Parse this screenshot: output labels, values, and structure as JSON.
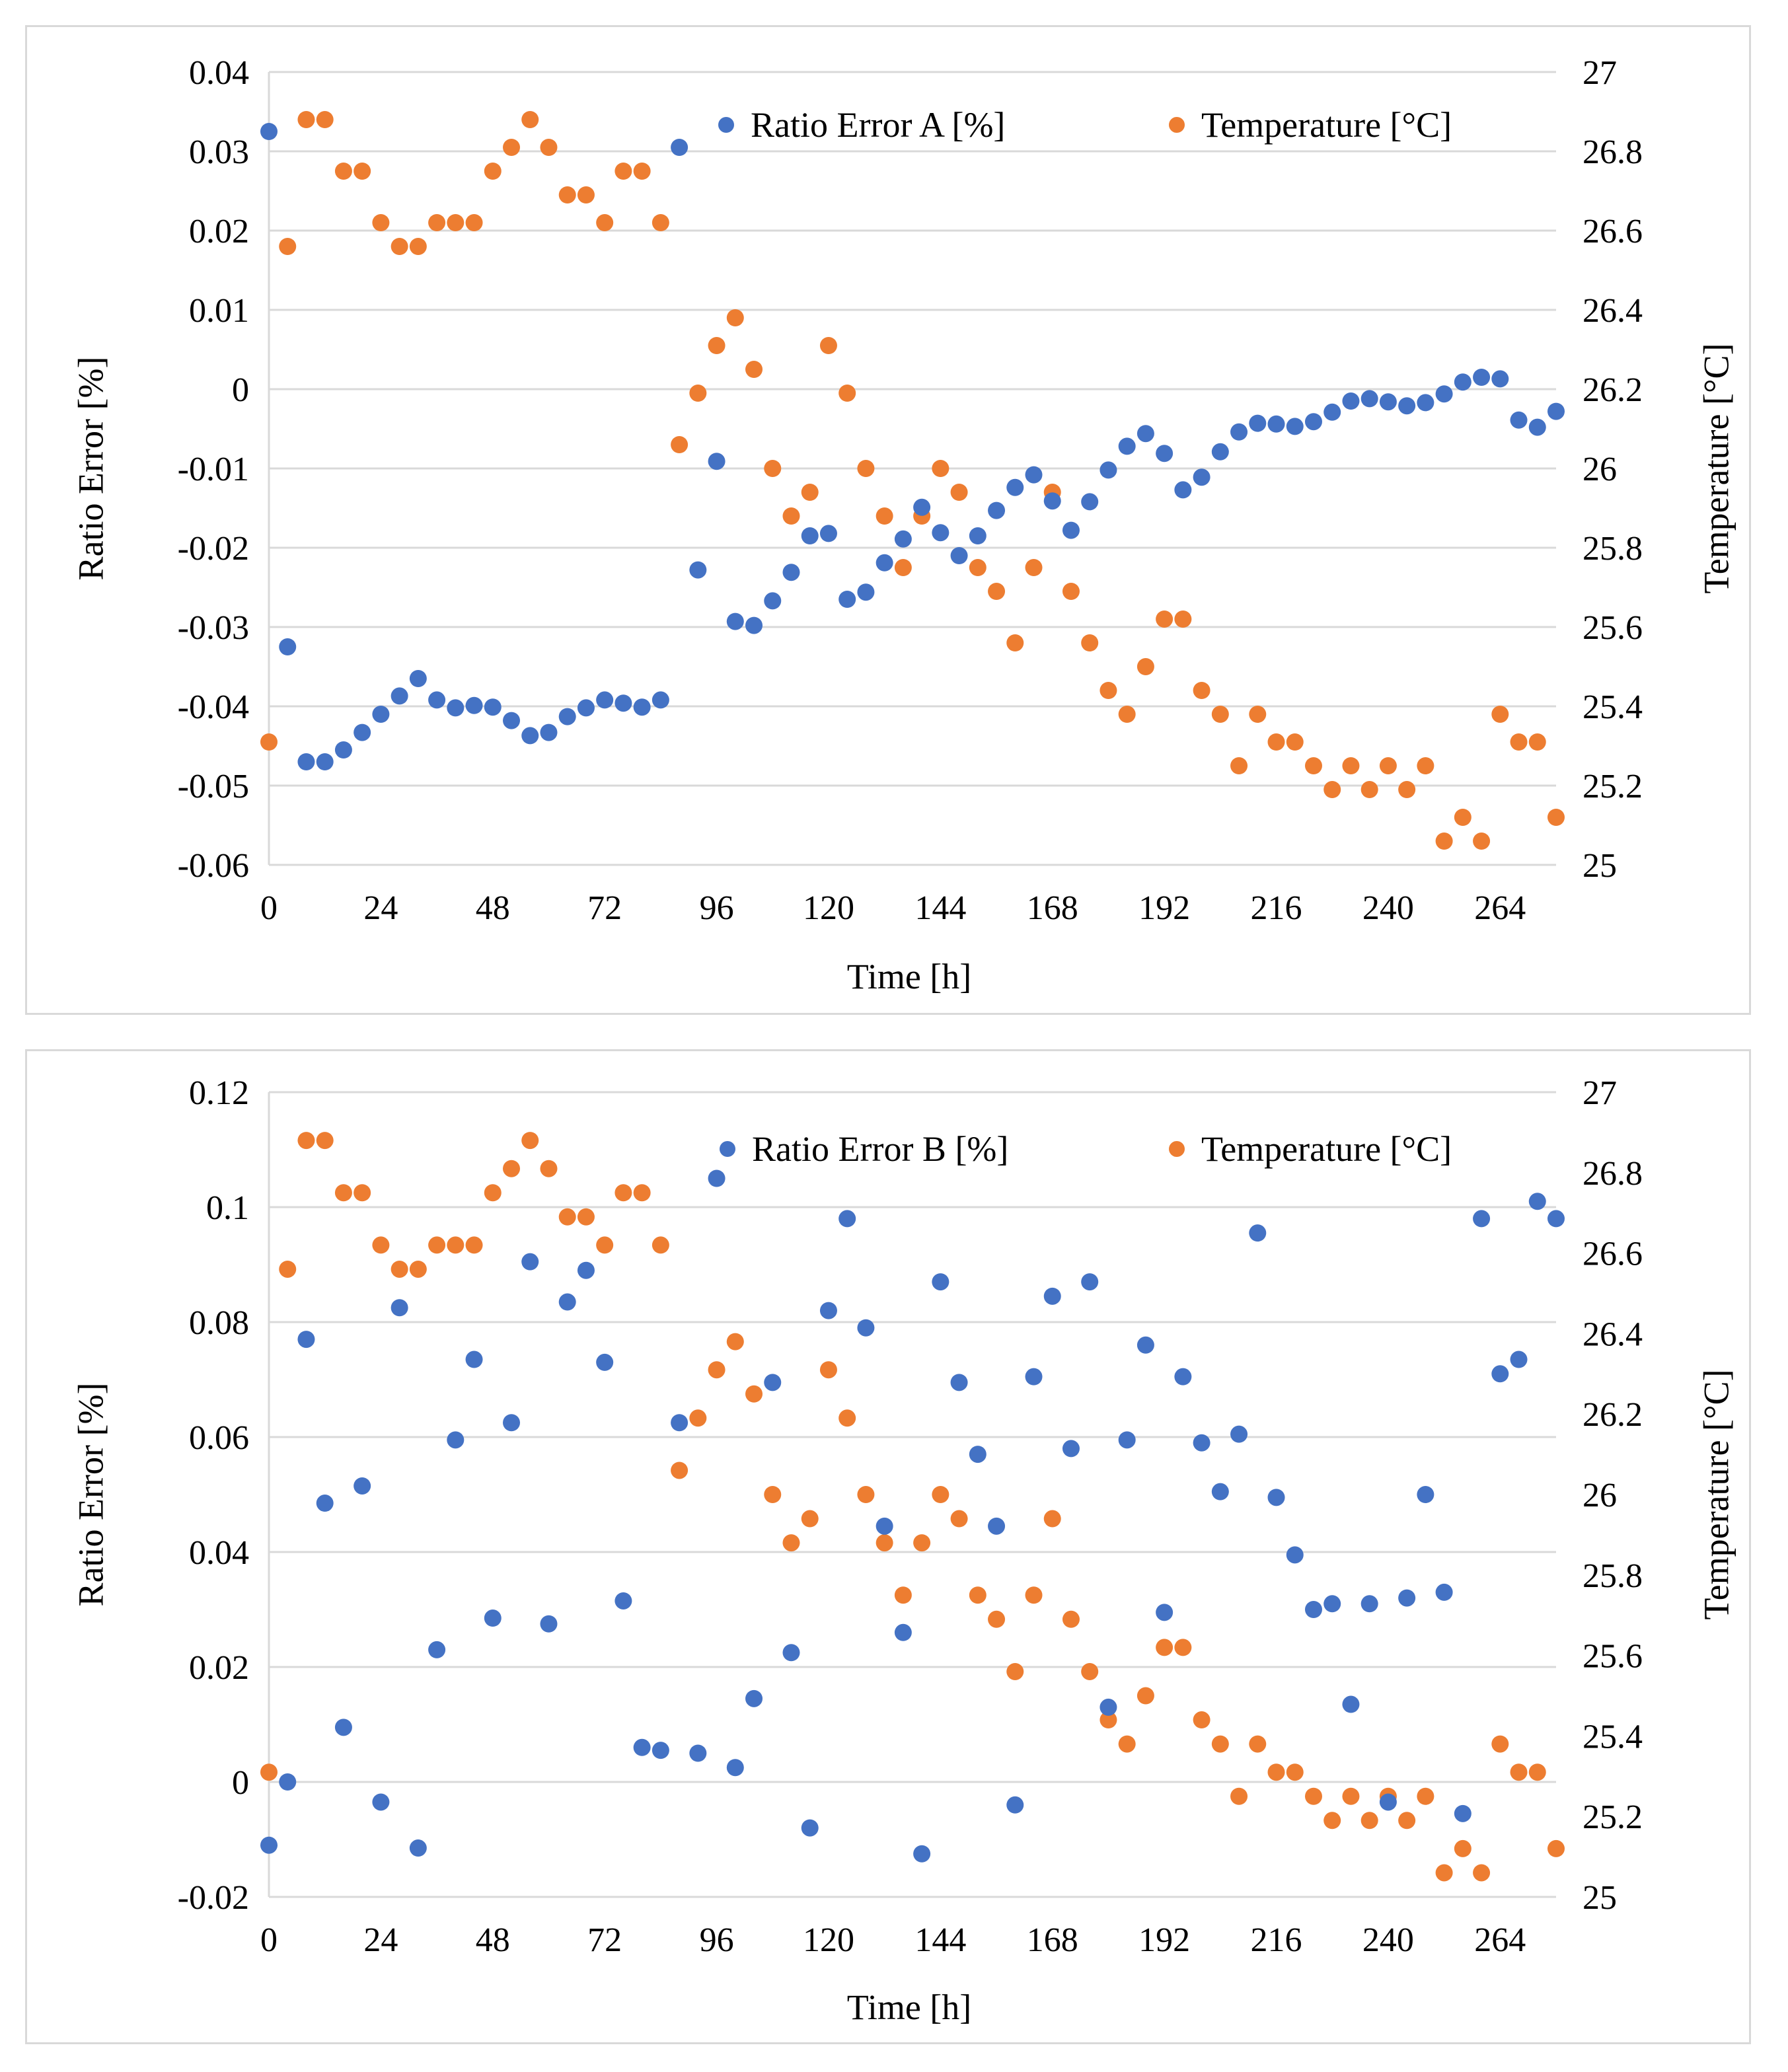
{
  "chart_data": [
    {
      "type": "scatter",
      "title": "",
      "xlabel": "Time [h]",
      "ylabel": "Ratio Error [%]",
      "y2label": "Temperature [°C]",
      "xlim": [
        0,
        276
      ],
      "xticks": [
        0,
        24,
        48,
        72,
        96,
        120,
        144,
        168,
        192,
        216,
        240,
        264
      ],
      "xtick_labels": [
        "0",
        "24",
        "48",
        "72",
        "96",
        "120",
        "144",
        "168",
        "192",
        "216",
        "240",
        "264"
      ],
      "ylim": [
        -0.06,
        0.04
      ],
      "yticks": [
        -0.06,
        -0.05,
        -0.04,
        -0.03,
        -0.02,
        -0.01,
        0,
        0.01,
        0.02,
        0.03,
        0.04
      ],
      "ytick_labels": [
        "-0.06",
        "-0.05",
        "-0.04",
        "-0.03",
        "-0.02",
        "-0.01",
        "0",
        "0.01",
        "0.02",
        "0.03",
        "0.04"
      ],
      "y2lim": [
        25,
        27
      ],
      "y2ticks": [
        25,
        25.2,
        25.4,
        25.6,
        25.8,
        26,
        26.2,
        26.4,
        26.6,
        26.8,
        27
      ],
      "y2tick_labels": [
        "25",
        "25.2",
        "25.4",
        "25.6",
        "25.8",
        "26",
        "26.2",
        "26.4",
        "26.6",
        "26.8",
        "27"
      ],
      "grid": "horizontal",
      "legend_position": "top-right",
      "series": [
        {
          "name": "Ratio Error A [%]",
          "axis": "left",
          "color": "#4472c4",
          "x": [
            0,
            4,
            8,
            12,
            16,
            20,
            24,
            28,
            32,
            36,
            40,
            44,
            48,
            52,
            56,
            60,
            64,
            68,
            72,
            76,
            80,
            84,
            88,
            92,
            96,
            100,
            104,
            108,
            112,
            116,
            120,
            124,
            128,
            132,
            136,
            140,
            144,
            148,
            152,
            156,
            160,
            164,
            168,
            172,
            176,
            180,
            184,
            188,
            192,
            196,
            200,
            204,
            208,
            212,
            216,
            220,
            224,
            228,
            232,
            236,
            240,
            244,
            248,
            252,
            256,
            260,
            264,
            268,
            272,
            276
          ],
          "values": [
            0.0325,
            -0.0325,
            -0.047,
            -0.047,
            -0.0455,
            -0.0433,
            -0.041,
            -0.0387,
            -0.0365,
            -0.0392,
            -0.0402,
            -0.0399,
            -0.0401,
            -0.0418,
            -0.0437,
            -0.0433,
            -0.0413,
            -0.0402,
            -0.0392,
            -0.0396,
            -0.0401,
            -0.0392,
            0.0305,
            -0.0228,
            -0.0091,
            -0.0293,
            -0.0298,
            -0.0267,
            -0.0231,
            -0.0185,
            -0.0182,
            -0.0265,
            -0.0256,
            -0.0219,
            -0.0189,
            -0.0149,
            -0.0181,
            -0.021,
            -0.0185,
            -0.0153,
            -0.0124,
            -0.0108,
            -0.0141,
            -0.0178,
            -0.0142,
            -0.0102,
            -0.0072,
            -0.0056,
            -0.0081,
            -0.0127,
            -0.0111,
            -0.0079,
            -0.0054,
            -0.0043,
            -0.0044,
            -0.0047,
            -0.0041,
            -0.0029,
            -0.0015,
            -0.0012,
            -0.0016,
            -0.0021,
            -0.0017,
            -0.0006,
            0.0009,
            0.0015,
            0.0013,
            -0.0039,
            -0.0048,
            -0.0028
          ]
        },
        {
          "name": "Temperature [°C]",
          "axis": "right",
          "color": "#ed7d31",
          "x": [
            0,
            4,
            8,
            12,
            16,
            20,
            24,
            28,
            32,
            36,
            40,
            44,
            48,
            52,
            56,
            60,
            64,
            68,
            72,
            76,
            80,
            84,
            88,
            92,
            96,
            100,
            104,
            108,
            112,
            116,
            120,
            124,
            128,
            132,
            136,
            140,
            144,
            148,
            152,
            156,
            160,
            164,
            168,
            172,
            176,
            180,
            184,
            188,
            192,
            196,
            200,
            204,
            208,
            212,
            216,
            220,
            224,
            228,
            232,
            236,
            240,
            244,
            248,
            252,
            256,
            260,
            264,
            268,
            272,
            276
          ],
          "values": [
            25.31,
            26.56,
            26.88,
            26.88,
            26.75,
            26.75,
            26.62,
            26.56,
            26.56,
            26.62,
            26.62,
            26.62,
            26.75,
            26.81,
            26.88,
            26.81,
            26.69,
            26.69,
            26.62,
            26.75,
            26.75,
            26.62,
            26.06,
            26.19,
            26.31,
            26.38,
            26.25,
            26.0,
            25.88,
            25.94,
            26.31,
            26.19,
            26.0,
            25.88,
            25.75,
            25.88,
            26.0,
            25.94,
            25.75,
            25.69,
            25.56,
            25.75,
            25.94,
            25.69,
            25.56,
            25.44,
            25.38,
            25.5,
            25.62,
            25.62,
            25.44,
            25.38,
            25.25,
            25.38,
            25.31,
            25.31,
            25.25,
            25.19,
            25.25,
            25.19,
            25.25,
            25.19,
            25.25,
            25.06,
            25.12,
            25.06,
            25.38,
            25.31,
            25.31,
            25.12
          ]
        }
      ]
    },
    {
      "type": "scatter",
      "title": "",
      "xlabel": "Time [h]",
      "ylabel": "Ratio Error [%]",
      "y2label": "Temperature [°C]",
      "xlim": [
        0,
        276
      ],
      "xticks": [
        0,
        24,
        48,
        72,
        96,
        120,
        144,
        168,
        192,
        216,
        240,
        264
      ],
      "xtick_labels": [
        "0",
        "24",
        "48",
        "72",
        "96",
        "120",
        "144",
        "168",
        "192",
        "216",
        "240",
        "264"
      ],
      "ylim": [
        -0.02,
        0.12
      ],
      "yticks": [
        -0.02,
        0,
        0.02,
        0.04,
        0.06,
        0.08,
        0.1,
        0.12
      ],
      "ytick_labels": [
        "-0.02",
        "0",
        "0.02",
        "0.04",
        "0.06",
        "0.08",
        "0.1",
        "0.12"
      ],
      "y2lim": [
        25,
        27
      ],
      "y2ticks": [
        25,
        25.2,
        25.4,
        25.6,
        25.8,
        26,
        26.2,
        26.4,
        26.6,
        26.8,
        27
      ],
      "y2tick_labels": [
        "25",
        "25.2",
        "25.4",
        "25.6",
        "25.8",
        "26",
        "26.2",
        "26.4",
        "26.6",
        "26.8",
        "27"
      ],
      "grid": "horizontal",
      "legend_position": "top-right",
      "series": [
        {
          "name": "Ratio Error B [%]",
          "axis": "left",
          "color": "#4472c4",
          "x": [
            0,
            4,
            8,
            12,
            16,
            20,
            24,
            28,
            32,
            36,
            40,
            44,
            48,
            52,
            56,
            60,
            64,
            68,
            72,
            76,
            80,
            84,
            88,
            92,
            96,
            100,
            104,
            108,
            112,
            116,
            120,
            124,
            128,
            132,
            136,
            140,
            144,
            148,
            152,
            156,
            160,
            164,
            168,
            172,
            176,
            180,
            184,
            188,
            192,
            196,
            200,
            204,
            208,
            212,
            216,
            220,
            224,
            228,
            232,
            236,
            240,
            244,
            248,
            252,
            256,
            260,
            264,
            268,
            272,
            276
          ],
          "values": [
            -0.011,
            0.0,
            0.077,
            0.0485,
            0.0095,
            0.0515,
            -0.0035,
            0.0825,
            -0.0115,
            0.023,
            0.0595,
            0.0735,
            0.0285,
            0.0625,
            0.0905,
            0.0275,
            0.0835,
            0.089,
            0.073,
            0.0315,
            0.006,
            0.0055,
            0.0625,
            0.005,
            0.105,
            0.0025,
            0.0145,
            0.0695,
            0.0225,
            -0.008,
            0.082,
            0.098,
            0.079,
            0.0445,
            0.026,
            -0.0125,
            0.087,
            0.0695,
            0.057,
            0.0445,
            -0.004,
            0.0705,
            0.0845,
            0.058,
            0.087,
            0.013,
            0.0595,
            0.076,
            0.0295,
            0.0705,
            0.059,
            0.0505,
            0.0605,
            0.0955,
            0.0495,
            0.0395,
            0.03,
            0.031,
            0.0135,
            0.031,
            -0.0035,
            0.032,
            0.05,
            0.033,
            -0.0055,
            0.098,
            0.071,
            0.0735,
            0.101,
            0.098
          ]
        },
        {
          "name": "Temperature [°C]",
          "axis": "right",
          "color": "#ed7d31",
          "x": [
            0,
            4,
            8,
            12,
            16,
            20,
            24,
            28,
            32,
            36,
            40,
            44,
            48,
            52,
            56,
            60,
            64,
            68,
            72,
            76,
            80,
            84,
            88,
            92,
            96,
            100,
            104,
            108,
            112,
            116,
            120,
            124,
            128,
            132,
            136,
            140,
            144,
            148,
            152,
            156,
            160,
            164,
            168,
            172,
            176,
            180,
            184,
            188,
            192,
            196,
            200,
            204,
            208,
            212,
            216,
            220,
            224,
            228,
            232,
            236,
            240,
            244,
            248,
            252,
            256,
            260,
            264,
            268,
            272,
            276
          ],
          "values": [
            25.31,
            26.56,
            26.88,
            26.88,
            26.75,
            26.75,
            26.62,
            26.56,
            26.56,
            26.62,
            26.62,
            26.62,
            26.75,
            26.81,
            26.88,
            26.81,
            26.69,
            26.69,
            26.62,
            26.75,
            26.75,
            26.62,
            26.06,
            26.19,
            26.31,
            26.38,
            26.25,
            26.0,
            25.88,
            25.94,
            26.31,
            26.19,
            26.0,
            25.88,
            25.75,
            25.88,
            26.0,
            25.94,
            25.75,
            25.69,
            25.56,
            25.75,
            25.94,
            25.69,
            25.56,
            25.44,
            25.38,
            25.5,
            25.62,
            25.62,
            25.44,
            25.38,
            25.25,
            25.38,
            25.31,
            25.31,
            25.25,
            25.19,
            25.25,
            25.19,
            25.25,
            25.19,
            25.25,
            25.06,
            25.12,
            25.06,
            25.38,
            25.31,
            25.31,
            25.12
          ]
        }
      ]
    }
  ]
}
